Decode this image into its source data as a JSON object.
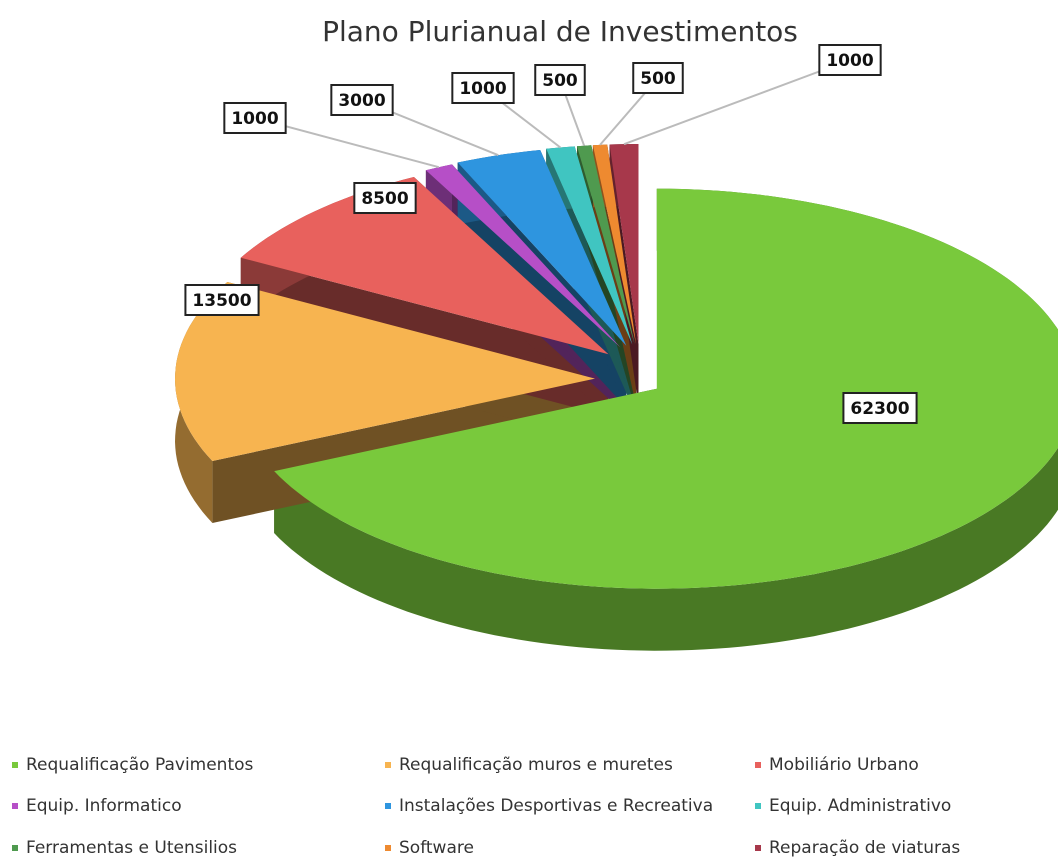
{
  "chart_data": {
    "type": "pie",
    "title": "Plano Plurianual de Investimentos",
    "categories": [
      "Requalificação Pavimentos",
      "Requalificação muros e muretes",
      "Mobiliário Urbano",
      "Equip. Informatico",
      "Instalações Desportivas e Recreativa",
      "Equip. Administrativo",
      "Ferramentas e Utensilios",
      "Software",
      "Reparação de viaturas"
    ],
    "values": [
      62300,
      13500,
      8500,
      1000,
      3000,
      1000,
      500,
      500,
      1000
    ],
    "colors": [
      "#79c93c",
      "#f7b450",
      "#e8615d",
      "#b64fc7",
      "#2e95df",
      "#40c5c1",
      "#4f9a4f",
      "#ee8a30",
      "#a7384b"
    ],
    "legend": "bottom"
  }
}
